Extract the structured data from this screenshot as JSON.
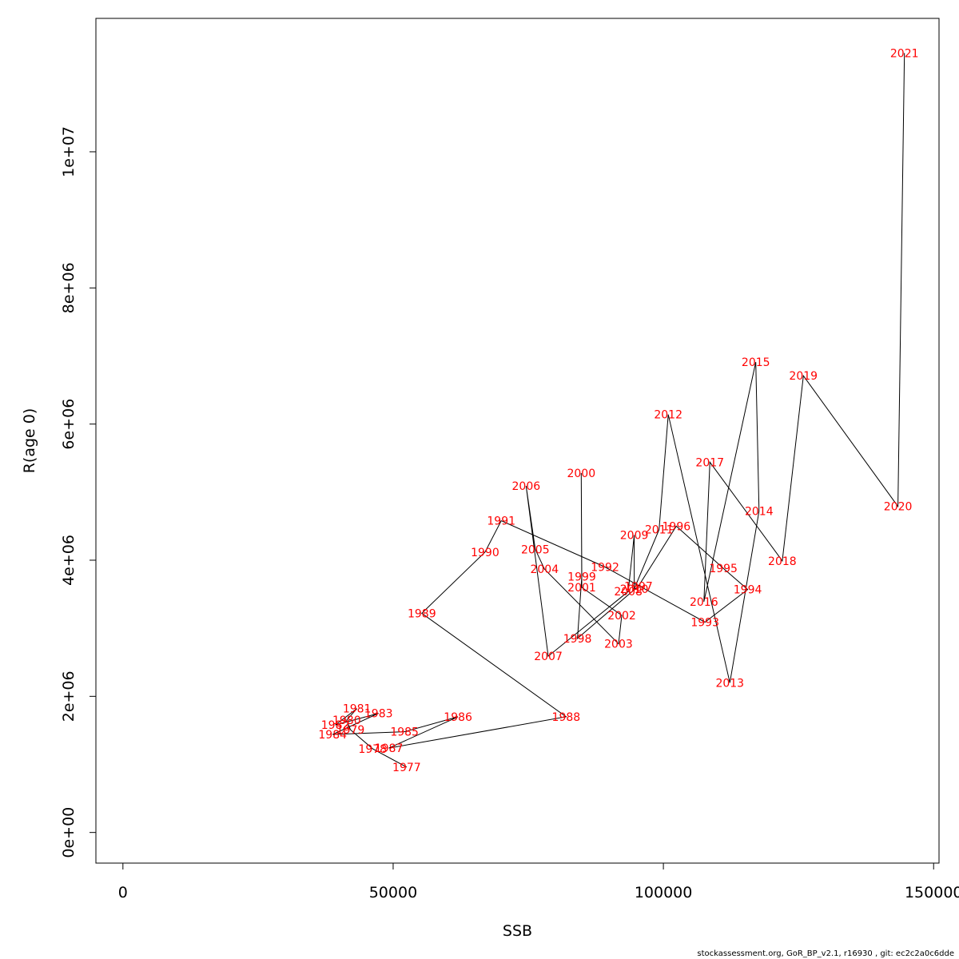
{
  "chart_data": {
    "type": "line",
    "xlabel": "SSB",
    "ylabel": "R(age 0)",
    "xlim": [
      -5000,
      151000
    ],
    "ylim": [
      -450000,
      11960000
    ],
    "x_ticks": [
      {
        "value": 0,
        "label": "0"
      },
      {
        "value": 50000,
        "label": "50000"
      },
      {
        "value": 100000,
        "label": "100000"
      },
      {
        "value": 150000,
        "label": "150000"
      }
    ],
    "y_ticks": [
      {
        "value": 0,
        "label": "0e+00"
      },
      {
        "value": 2000000,
        "label": "2e+06"
      },
      {
        "value": 4000000,
        "label": "4e+06"
      },
      {
        "value": 6000000,
        "label": "6e+06"
      },
      {
        "value": 8000000,
        "label": "8e+06"
      },
      {
        "value": 10000000,
        "label": "1e+07"
      }
    ],
    "line_color": "#000000",
    "label_color": "#ff0000",
    "points": [
      {
        "year": "1977",
        "x": 52500,
        "y": 960000
      },
      {
        "year": "1978",
        "x": 46200,
        "y": 1230000
      },
      {
        "year": "1979",
        "x": 42100,
        "y": 1510000
      },
      {
        "year": "1980",
        "x": 41400,
        "y": 1650000
      },
      {
        "year": "1981",
        "x": 43300,
        "y": 1820000
      },
      {
        "year": "1982",
        "x": 39300,
        "y": 1580000
      },
      {
        "year": "1983",
        "x": 47300,
        "y": 1750000
      },
      {
        "year": "1984",
        "x": 38800,
        "y": 1440000
      },
      {
        "year": "1985",
        "x": 52100,
        "y": 1480000
      },
      {
        "year": "1986",
        "x": 62000,
        "y": 1700000
      },
      {
        "year": "1987",
        "x": 49200,
        "y": 1240000
      },
      {
        "year": "1988",
        "x": 82000,
        "y": 1700000
      },
      {
        "year": "1989",
        "x": 55300,
        "y": 3220000
      },
      {
        "year": "1990",
        "x": 67000,
        "y": 4120000
      },
      {
        "year": "1991",
        "x": 70000,
        "y": 4580000
      },
      {
        "year": "1992",
        "x": 89200,
        "y": 3900000
      },
      {
        "year": "1993",
        "x": 107700,
        "y": 3090000
      },
      {
        "year": "1994",
        "x": 115600,
        "y": 3570000
      },
      {
        "year": "1995",
        "x": 111100,
        "y": 3880000
      },
      {
        "year": "1996",
        "x": 102400,
        "y": 4500000
      },
      {
        "year": "1997",
        "x": 95400,
        "y": 3620000
      },
      {
        "year": "1998",
        "x": 84100,
        "y": 2850000
      },
      {
        "year": "1999",
        "x": 84900,
        "y": 3760000
      },
      {
        "year": "2000",
        "x": 84800,
        "y": 5280000
      },
      {
        "year": "2001",
        "x": 84900,
        "y": 3600000
      },
      {
        "year": "2002",
        "x": 92300,
        "y": 3190000
      },
      {
        "year": "2003",
        "x": 91700,
        "y": 2770000
      },
      {
        "year": "2004",
        "x": 78000,
        "y": 3870000
      },
      {
        "year": "2005",
        "x": 76300,
        "y": 4160000
      },
      {
        "year": "2006",
        "x": 74600,
        "y": 5090000
      },
      {
        "year": "2007",
        "x": 78700,
        "y": 2590000
      },
      {
        "year": "2008",
        "x": 93500,
        "y": 3540000
      },
      {
        "year": "2009",
        "x": 94600,
        "y": 4370000
      },
      {
        "year": "2010",
        "x": 94600,
        "y": 3580000
      },
      {
        "year": "2011",
        "x": 99200,
        "y": 4450000
      },
      {
        "year": "2012",
        "x": 100900,
        "y": 6140000
      },
      {
        "year": "2013",
        "x": 112300,
        "y": 2200000
      },
      {
        "year": "2014",
        "x": 117700,
        "y": 4720000
      },
      {
        "year": "2015",
        "x": 117100,
        "y": 6910000
      },
      {
        "year": "2016",
        "x": 107500,
        "y": 3390000
      },
      {
        "year": "2017",
        "x": 108600,
        "y": 5440000
      },
      {
        "year": "2018",
        "x": 122000,
        "y": 3990000
      },
      {
        "year": "2019",
        "x": 125900,
        "y": 6710000
      },
      {
        "year": "2020",
        "x": 143400,
        "y": 4790000
      },
      {
        "year": "2021",
        "x": 144600,
        "y": 11450000
      }
    ]
  },
  "footer": "stockassessment.org, GoR_BP_v2.1, r16930 , git: ec2c2a0c6dde"
}
